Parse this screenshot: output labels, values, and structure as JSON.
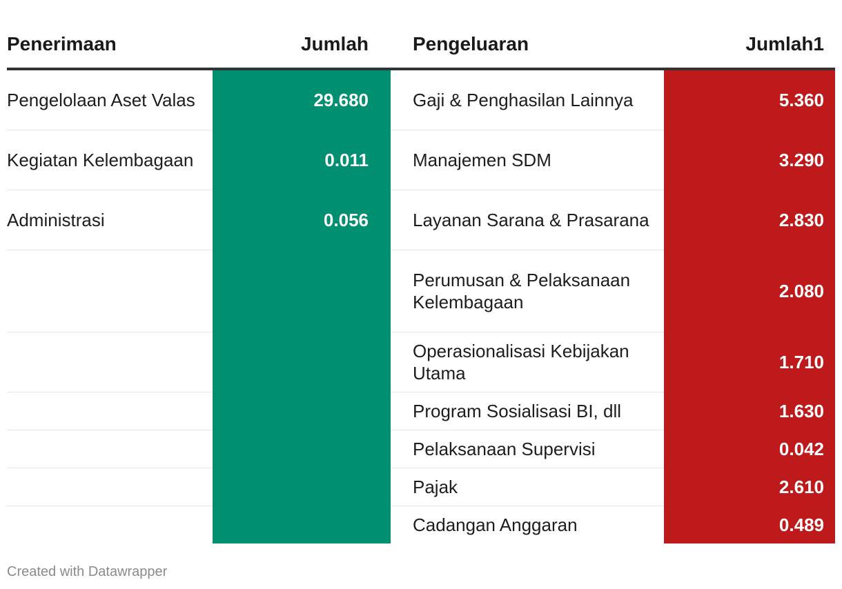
{
  "chart_data": {
    "type": "table",
    "columns": [
      "Penerimaan",
      "Jumlah",
      "Pengeluaran",
      "Jumlah1"
    ],
    "rows": [
      {
        "penerimaan": "Pengelolaan Aset Valas",
        "jumlah": "29.680",
        "pengeluaran": "Gaji & Penghasilan Lainnya",
        "jumlah1": "5.360"
      },
      {
        "penerimaan": "Kegiatan Kelembagaan",
        "jumlah": "0.011",
        "pengeluaran": "Manajemen SDM",
        "jumlah1": "3.290"
      },
      {
        "penerimaan": "Administrasi",
        "jumlah": "0.056",
        "pengeluaran": "Layanan Sarana & Prasarana",
        "jumlah1": "2.830"
      },
      {
        "penerimaan": "",
        "jumlah": "",
        "pengeluaran": "Perumusan & Pelaksanaan Kelembagaan",
        "jumlah1": "2.080"
      },
      {
        "penerimaan": "",
        "jumlah": "",
        "pengeluaran": "Operasionalisasi Kebijakan Utama",
        "jumlah1": "1.710"
      },
      {
        "penerimaan": "",
        "jumlah": "",
        "pengeluaran": "Program Sosialisasi BI, dll",
        "jumlah1": "1.630"
      },
      {
        "penerimaan": "",
        "jumlah": "",
        "pengeluaran": "Pelaksanaan Supervisi",
        "jumlah1": "0.042"
      },
      {
        "penerimaan": "",
        "jumlah": "",
        "pengeluaran": "Pajak",
        "jumlah1": "2.610"
      },
      {
        "penerimaan": "",
        "jumlah": "",
        "pengeluaran": "Cadangan Anggaran",
        "jumlah1": "0.489"
      }
    ],
    "colors": {
      "penerimaan_fill": "#008f71",
      "pengeluaran_fill": "#be1a1c",
      "header_rule": "#333333",
      "row_divider": "#e6e6e6"
    }
  },
  "footer": {
    "credit": "Created with Datawrapper"
  }
}
